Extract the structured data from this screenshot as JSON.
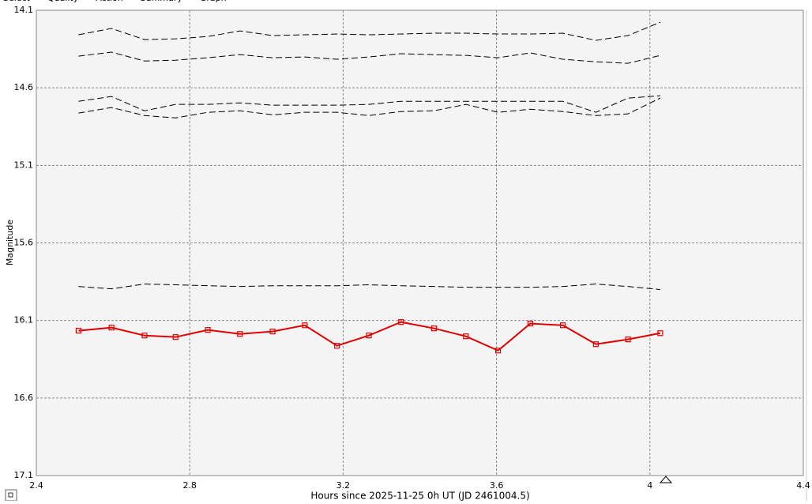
{
  "tabs": [
    "Select",
    "Quality",
    "Action",
    "Summary",
    "Graph"
  ],
  "chart_data": {
    "type": "line",
    "y_label": "Magnitude",
    "x_label": "Hours since 2025-11-25 0h UT (JD 2461004.5)",
    "x": [
      2.51,
      2.596,
      2.682,
      2.763,
      2.847,
      2.931,
      3.016,
      3.1,
      3.184,
      3.267,
      3.351,
      3.437,
      3.52,
      3.604,
      3.688,
      3.773,
      3.859,
      3.943,
      4.027
    ],
    "xlim": [
      2.4,
      4.4
    ],
    "xticks": [
      2.4,
      2.8,
      3.2,
      3.6,
      4,
      4.4
    ],
    "ylim": [
      14.1,
      17.1
    ],
    "yticks": [
      14.1,
      14.6,
      15.1,
      15.6,
      16.1,
      16.6,
      17.1
    ],
    "y_inverted": true,
    "grid": true,
    "series": [
      {
        "color": "#000000",
        "dashed": true,
        "values": [
          14.258,
          14.217,
          14.289,
          14.284,
          14.269,
          14.233,
          14.263,
          14.258,
          14.253,
          14.258,
          14.253,
          14.248,
          14.248,
          14.253,
          14.253,
          14.248,
          14.294,
          14.263,
          14.177
        ]
      },
      {
        "color": "#000000",
        "dashed": true,
        "values": [
          14.396,
          14.37,
          14.427,
          14.422,
          14.406,
          14.386,
          14.406,
          14.401,
          14.416,
          14.401,
          14.38,
          14.386,
          14.391,
          14.406,
          14.375,
          14.416,
          14.432,
          14.442,
          14.391
        ]
      },
      {
        "color": "#000000",
        "dashed": true,
        "values": [
          14.687,
          14.656,
          14.748,
          14.707,
          14.707,
          14.697,
          14.712,
          14.712,
          14.712,
          14.707,
          14.687,
          14.687,
          14.687,
          14.687,
          14.687,
          14.687,
          14.758,
          14.666,
          14.651
        ]
      },
      {
        "color": "#000000",
        "dashed": true,
        "values": [
          14.763,
          14.727,
          14.779,
          14.794,
          14.758,
          14.748,
          14.774,
          14.758,
          14.758,
          14.779,
          14.753,
          14.748,
          14.707,
          14.758,
          14.738,
          14.753,
          14.779,
          14.768,
          14.666
        ]
      },
      {
        "color": "#000000",
        "dashed": true,
        "values": [
          15.881,
          15.896,
          15.865,
          15.87,
          15.876,
          15.881,
          15.876,
          15.876,
          15.876,
          15.87,
          15.876,
          15.881,
          15.886,
          15.886,
          15.886,
          15.881,
          15.865,
          15.881,
          15.901
        ]
      },
      {
        "color": "#e00000",
        "dashed": false,
        "marker": "square",
        "values": [
          16.166,
          16.146,
          16.197,
          16.207,
          16.161,
          16.187,
          16.171,
          16.131,
          16.263,
          16.197,
          16.11,
          16.151,
          16.202,
          16.294,
          16.12,
          16.131,
          16.253,
          16.222,
          16.182
        ]
      }
    ]
  }
}
